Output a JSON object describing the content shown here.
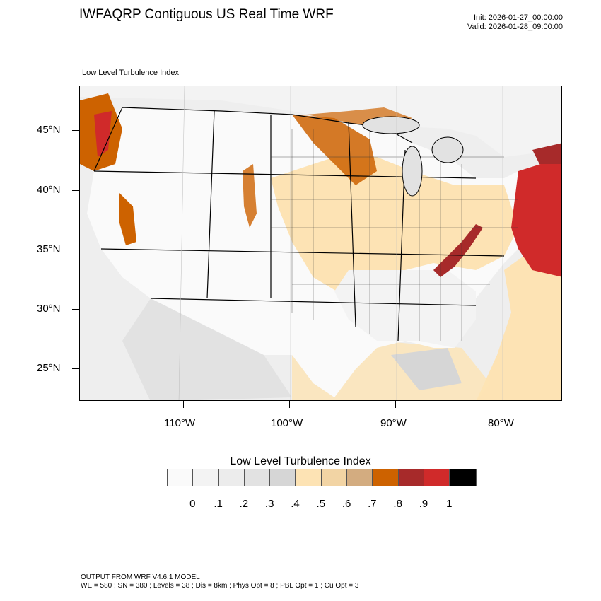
{
  "header": {
    "title": "IWFAQRP Contiguous US Real Time WRF",
    "init": "Init: 2026-01-27_00:00:00",
    "valid": "Valid: 2026-01-28_09:00:00"
  },
  "map": {
    "subtitle": "Low Level Turbulence Index",
    "lat_labels": [
      "45°N",
      "40°N",
      "35°N",
      "30°N",
      "25°N"
    ],
    "lon_labels": [
      "110°W",
      "100°W",
      "90°W",
      "80°W"
    ]
  },
  "legend": {
    "title": "Low Level Turbulence Index",
    "colors": [
      "#fafafa",
      "#f3f3f3",
      "#ececec",
      "#e2e2e2",
      "#d6d6d6",
      "#fde3b4",
      "#f2d4a4",
      "#d3ac80",
      "#cd6200",
      "#a72a2a",
      "#d02a2a",
      "#000000"
    ],
    "ticks": [
      "0",
      ".1",
      ".2",
      ".3",
      ".4",
      ".5",
      ".6",
      ".7",
      ".8",
      ".9",
      "1"
    ]
  },
  "footer": {
    "line1": "OUTPUT FROM WRF V4.6.1 MODEL",
    "line2": "WE = 580 ; SN = 380 ; Levels = 38 ; Dis = 8km ; Phys Opt = 8 ; PBL Opt = 1 ; Cu Opt = 3"
  }
}
